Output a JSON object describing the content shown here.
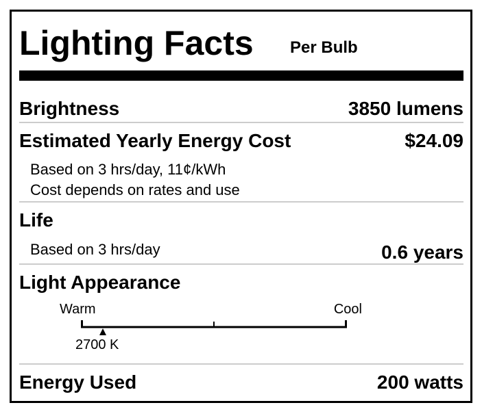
{
  "header": {
    "title": "Lighting Facts",
    "subtitle": "Per Bulb"
  },
  "brightness": {
    "label": "Brightness",
    "value": "3850 lumens"
  },
  "energy_cost": {
    "label": "Estimated Yearly Energy Cost",
    "value": "$24.09",
    "notes": [
      "Based on 3 hrs/day, 11¢/kWh",
      "Cost depends on rates and use"
    ]
  },
  "life": {
    "label": "Life",
    "note": "Based on 3 hrs/day",
    "value": "0.6 years"
  },
  "appearance": {
    "label": "Light Appearance",
    "scale_left": "Warm",
    "scale_right": "Cool",
    "marker": "2700 K"
  },
  "energy_used": {
    "label": "Energy Used",
    "value": "200 watts"
  }
}
